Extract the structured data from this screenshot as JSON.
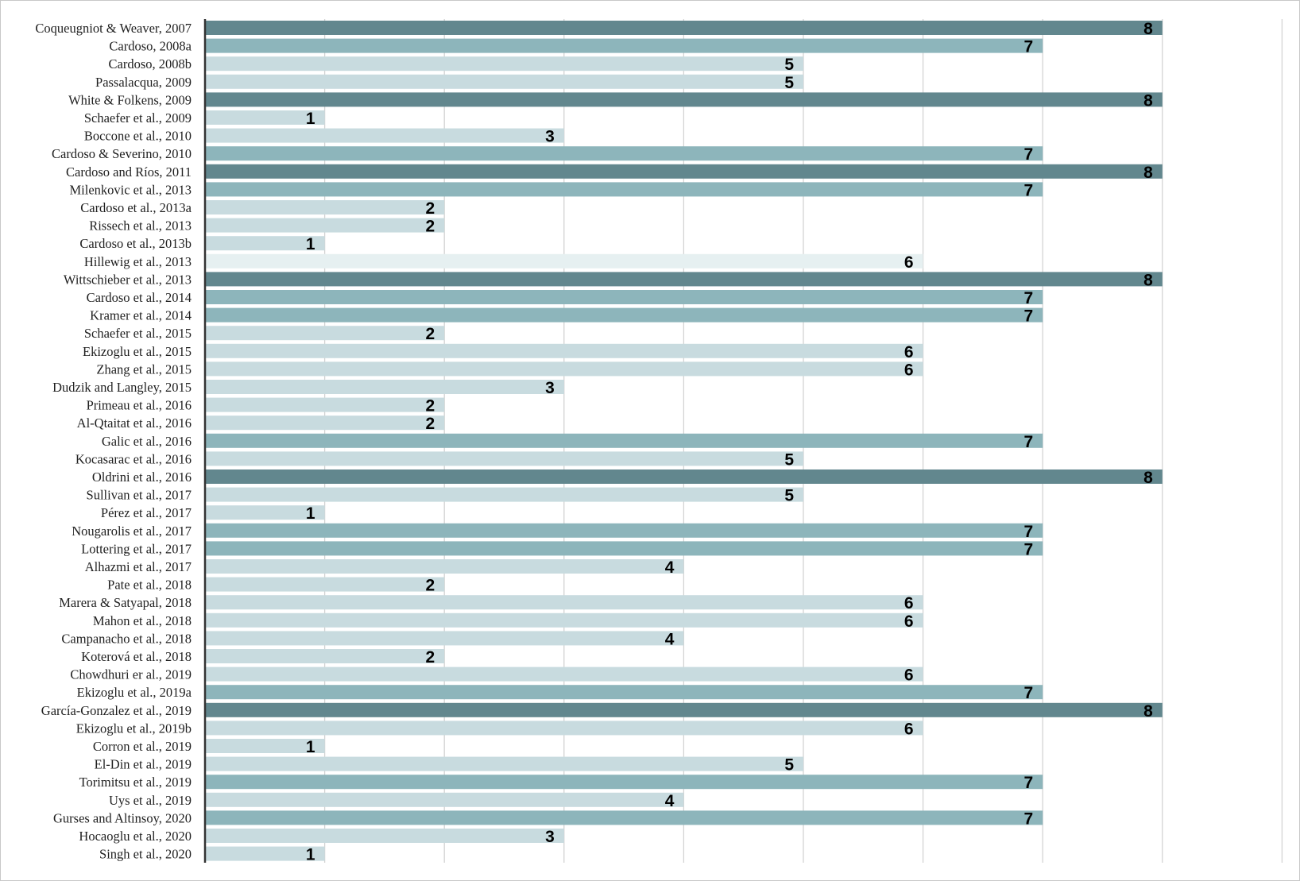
{
  "chart_data": {
    "type": "bar",
    "orientation": "horizontal",
    "title": "",
    "xlabel": "",
    "ylabel": "",
    "xlim": [
      0,
      9
    ],
    "grid": true,
    "legend": "none",
    "categories": [
      "Coqueugniot & Weaver, 2007",
      "Cardoso, 2008a",
      "Cardoso, 2008b",
      "Passalacqua, 2009",
      "White & Folkens, 2009",
      "Schaefer et al., 2009",
      "Boccone et al., 2010",
      "Cardoso & Severino, 2010",
      "Cardoso and Ríos, 2011",
      "Milenkovic et al., 2013",
      "Cardoso et al., 2013a",
      "Rissech et al., 2013",
      "Cardoso et al., 2013b",
      "Hillewig et al., 2013",
      "Wittschieber et al., 2013",
      "Cardoso et al., 2014",
      "Kramer et al., 2014",
      "Schaefer et al., 2015",
      "Ekizoglu et al., 2015",
      "Zhang et al., 2015",
      "Dudzik and Langley, 2015",
      "Primeau et al., 2016",
      "Al-Qtaitat et al., 2016",
      "Galic et al., 2016",
      "Kocasarac et al., 2016",
      "Oldrini et al., 2016",
      "Sullivan et al., 2017",
      "Pérez et al., 2017",
      "Nougarolis et al., 2017",
      "Lottering et al., 2017",
      "Alhazmi et al., 2017",
      "Pate et al., 2018",
      "Marera & Satyapal, 2018",
      "Mahon et al., 2018",
      "Campanacho et al., 2018",
      "Koterová et al., 2018",
      "Chowdhuri er al., 2019",
      "Ekizoglu et al., 2019a",
      "García-Gonzalez et al., 2019",
      "Ekizoglu et al., 2019b",
      "Corron et al., 2019",
      "El-Din et al., 2019",
      "Torimitsu et al., 2019",
      "Uys et al., 2019",
      "Gurses and Altinsoy, 2020",
      "Hocaoglu et al., 2020",
      "Singh et al., 2020"
    ],
    "values": [
      8,
      7,
      5,
      5,
      8,
      1,
      3,
      7,
      8,
      7,
      2,
      2,
      1,
      6,
      8,
      7,
      7,
      2,
      6,
      6,
      3,
      2,
      2,
      7,
      5,
      8,
      5,
      1,
      7,
      7,
      4,
      2,
      6,
      6,
      4,
      2,
      6,
      7,
      8,
      6,
      1,
      5,
      7,
      4,
      7,
      3,
      1
    ],
    "colors": {
      "score_8": "#62878e",
      "score_7": "#8db5bb",
      "score_low": "#c8dbdf",
      "hillewig_6": "#e6f0f1",
      "gridline": "#d4d4d4",
      "axis": "#333333"
    }
  }
}
